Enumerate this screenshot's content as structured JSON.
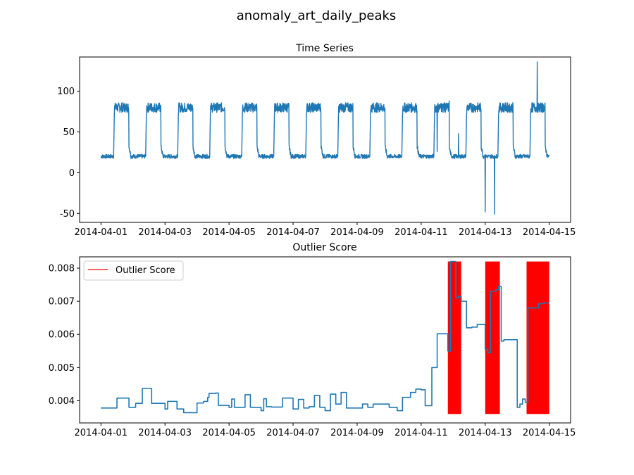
{
  "figure": {
    "suptitle": "anomaly_art_daily_peaks",
    "colors": {
      "line": "#1f77b4",
      "highlight": "#ff0000",
      "axis": "#000000",
      "background": "#ffffff"
    }
  },
  "chart_data": [
    {
      "type": "line",
      "title": "Time Series",
      "xlabel": "",
      "ylabel": "",
      "xlim": [
        "2014-03-31T08:00",
        "2014-04-15T16:00"
      ],
      "ylim": [
        -61,
        142
      ],
      "x_ticks": [
        "2014-04-01",
        "2014-04-03",
        "2014-04-05",
        "2014-04-07",
        "2014-04-09",
        "2014-04-11",
        "2014-04-13",
        "2014-04-15"
      ],
      "y_ticks": [
        -50,
        0,
        50,
        100
      ],
      "grid": false,
      "legend": null,
      "pattern": {
        "start": "2014-04-01T00:00",
        "end": "2014-04-15T00:00",
        "baseline_level": 20,
        "peak_level": 80,
        "daily_peak_start_hour": 9.5,
        "daily_peak_end_hour": 21
      },
      "spikes": [
        {
          "x": "2014-04-11T12:00",
          "y": 26
        },
        {
          "x": "2014-04-11T15:00",
          "y": 85
        },
        {
          "x": "2014-04-11T21:00",
          "y": 88
        },
        {
          "x": "2014-04-12T04:00",
          "y": 48
        },
        {
          "x": "2014-04-13T00:00",
          "y": -48
        },
        {
          "x": "2014-04-13T07:00",
          "y": -51
        },
        {
          "x": "2014-04-14T15:00",
          "y": 136
        }
      ]
    },
    {
      "type": "line",
      "title": "Outlier Score",
      "xlabel": "",
      "ylabel": "",
      "xlim": [
        "2014-03-31T08:00",
        "2014-04-15T16:00"
      ],
      "ylim": [
        0.00333,
        0.00834
      ],
      "x_ticks": [
        "2014-04-01",
        "2014-04-03",
        "2014-04-05",
        "2014-04-07",
        "2014-04-09",
        "2014-04-11",
        "2014-04-13",
        "2014-04-15"
      ],
      "y_ticks": [
        0.004,
        0.005,
        0.006,
        0.007,
        0.008
      ],
      "grid": false,
      "legend": {
        "position": "top-left",
        "entries": [
          "Outlier Score"
        ]
      },
      "highlight_series": "Outlier Score",
      "highlight_bands": [
        {
          "x_start": "2014-04-11T20:00",
          "x_end": "2014-04-12T06:00",
          "y_start": 0.0036,
          "y_end": 0.0082
        },
        {
          "x_start": "2014-04-13T00:00",
          "x_end": "2014-04-13T11:00",
          "y_start": 0.0036,
          "y_end": 0.0082
        },
        {
          "x_start": "2014-04-14T07:00",
          "x_end": "2014-04-15T00:00",
          "y_start": 0.0036,
          "y_end": 0.0082
        }
      ],
      "series": [
        {
          "name": "",
          "x": [
            "2014-04-01T00:00",
            "2014-04-01T10:00",
            "2014-04-01T12:00",
            "2014-04-01T20:00",
            "2014-04-01T21:00",
            "2014-04-02T00:00",
            "2014-04-02T02:00",
            "2014-04-02T06:00",
            "2014-04-02T07:00",
            "2014-04-02T12:00",
            "2014-04-02T14:00",
            "2014-04-03T00:00",
            "2014-04-03T02:00",
            "2014-04-03T08:00",
            "2014-04-03T09:00",
            "2014-04-03T14:00",
            "2014-04-04T00:00",
            "2014-04-04T04:00",
            "2014-04-04T05:00",
            "2014-04-04T08:00",
            "2014-04-04T09:00",
            "2014-04-04T14:00",
            "2014-04-04T16:00",
            "2014-04-05T00:00",
            "2014-04-05T02:00",
            "2014-04-05T04:00",
            "2014-04-05T08:00",
            "2014-04-05T12:00",
            "2014-04-05T16:00",
            "2014-04-06T00:00",
            "2014-04-06T02:00",
            "2014-04-06T04:00",
            "2014-04-06T08:00",
            "2014-04-06T16:00",
            "2014-04-07T00:00",
            "2014-04-07T04:00",
            "2014-04-07T08:00",
            "2014-04-07T12:00",
            "2014-04-07T16:00",
            "2014-04-07T20:00",
            "2014-04-08T00:00",
            "2014-04-08T04:00",
            "2014-04-08T08:00",
            "2014-04-08T12:00",
            "2014-04-08T16:00",
            "2014-04-09T00:00",
            "2014-04-09T04:00",
            "2014-04-09T08:00",
            "2014-04-09T12:00",
            "2014-04-10T00:00",
            "2014-04-10T06:00",
            "2014-04-10T10:00",
            "2014-04-10T16:00",
            "2014-04-10T20:00",
            "2014-04-11T00:00",
            "2014-04-11T03:00",
            "2014-04-11T05:00",
            "2014-04-11T08:00",
            "2014-04-11T12:00",
            "2014-04-11T16:00",
            "2014-04-11T20:00",
            "2014-04-11T22:00",
            "2014-04-12T02:00",
            "2014-04-12T04:00",
            "2014-04-12T06:00",
            "2014-04-12T10:00",
            "2014-04-12T14:00",
            "2014-04-12T18:00",
            "2014-04-13T00:00",
            "2014-04-13T02:00",
            "2014-04-13T04:00",
            "2014-04-13T08:00",
            "2014-04-13T10:00",
            "2014-04-13T12:00",
            "2014-04-13T14:00",
            "2014-04-13T18:00",
            "2014-04-14T00:00",
            "2014-04-14T02:00",
            "2014-04-14T04:00",
            "2014-04-14T06:00",
            "2014-04-14T08:00",
            "2014-04-14T12:00",
            "2014-04-14T16:00",
            "2014-04-14T20:00",
            "2014-04-15T00:00"
          ],
          "values": [
            0.00378,
            0.00378,
            0.00408,
            0.00408,
            0.0038,
            0.0038,
            0.00392,
            0.00392,
            0.00437,
            0.00437,
            0.00392,
            0.00375,
            0.00398,
            0.00398,
            0.00375,
            0.00364,
            0.00393,
            0.00393,
            0.00398,
            0.0041,
            0.00422,
            0.00423,
            0.00386,
            0.0038,
            0.00405,
            0.0038,
            0.0038,
            0.00418,
            0.0038,
            0.0037,
            0.00406,
            0.00382,
            0.00381,
            0.00408,
            0.00375,
            0.00404,
            0.00378,
            0.00382,
            0.00416,
            0.0038,
            0.0037,
            0.0042,
            0.0039,
            0.00425,
            0.00378,
            0.00378,
            0.0039,
            0.0038,
            0.0039,
            0.0038,
            0.0037,
            0.0041,
            0.00425,
            0.00435,
            0.00433,
            0.00385,
            0.00385,
            0.005,
            0.00602,
            0.00602,
            0.0055,
            0.0082,
            0.0071,
            0.00715,
            0.007,
            0.0062,
            0.00622,
            0.0063,
            0.00555,
            0.00545,
            0.0073,
            0.00735,
            0.00745,
            0.0058,
            0.00584,
            0.00584,
            0.0038,
            0.0039,
            0.00405,
            0.00395,
            0.0068,
            0.0068,
            0.00693,
            0.00695,
            0.00695
          ]
        }
      ]
    }
  ]
}
